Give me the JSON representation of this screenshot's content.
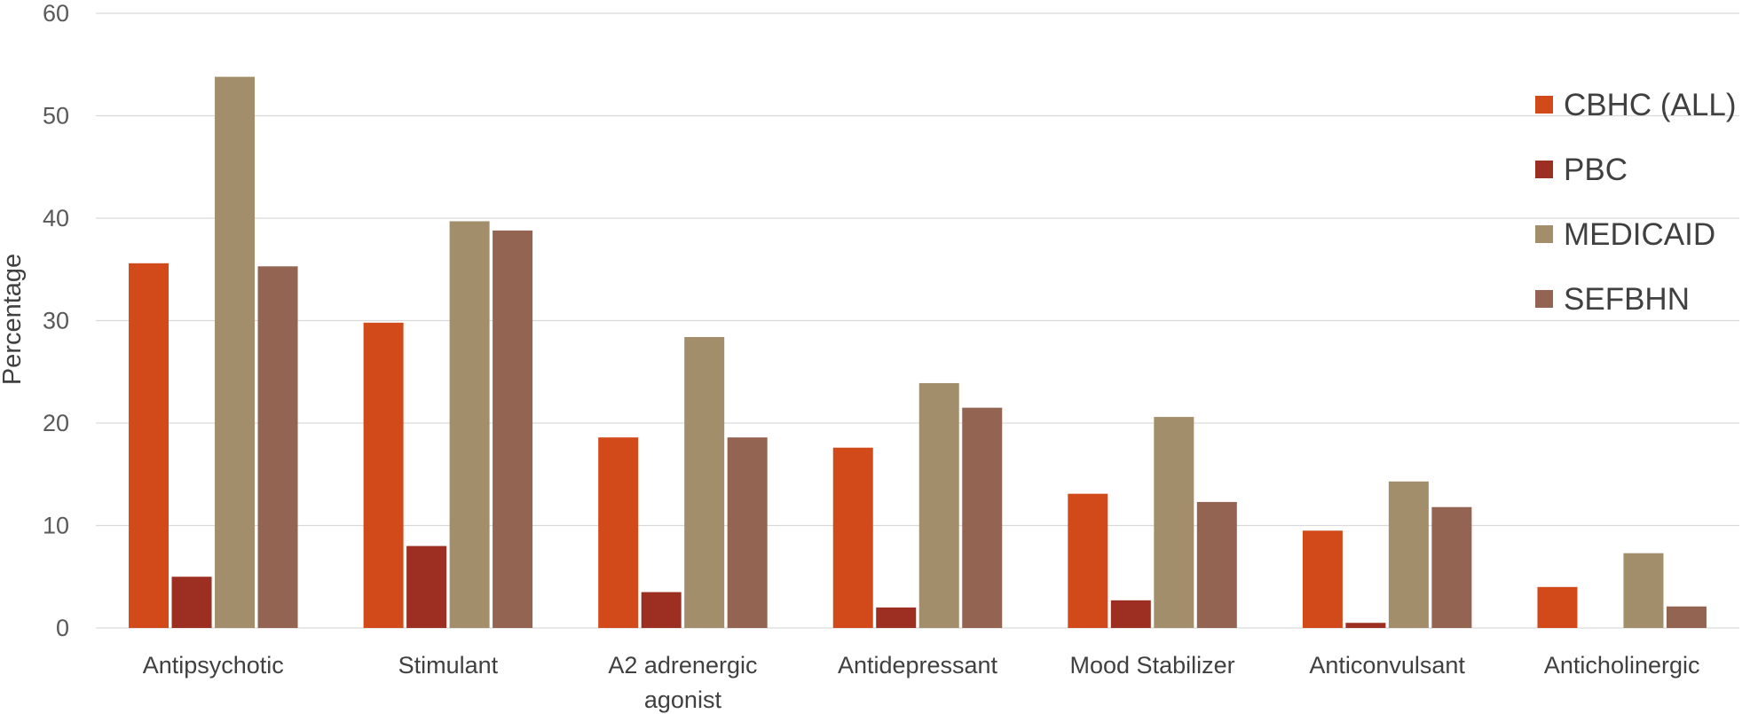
{
  "chart_data": {
    "type": "bar",
    "title": "",
    "xlabel": "",
    "ylabel": "Percentage",
    "ylim": [
      0,
      60
    ],
    "yticks": [
      0,
      10,
      20,
      30,
      40,
      50,
      60
    ],
    "grid": true,
    "legend_position": "right",
    "categories": [
      [
        "Antipsychotic"
      ],
      [
        "Stimulant"
      ],
      [
        "A2 adrenergic",
        "agonist"
      ],
      [
        "Antidepressant"
      ],
      [
        "Mood Stabilizer"
      ],
      [
        "Anticonvulsant"
      ],
      [
        "Anticholinergic"
      ]
    ],
    "series": [
      {
        "name": "CBHC (ALL)",
        "color": "#D24A1A",
        "values": [
          35.6,
          29.8,
          18.6,
          17.6,
          13.1,
          9.5,
          4.0
        ]
      },
      {
        "name": "PBC",
        "color": "#9C2F22",
        "values": [
          5.0,
          8.0,
          3.5,
          2.0,
          2.7,
          0.5,
          0
        ]
      },
      {
        "name": "MEDICAID",
        "color": "#A38E6B",
        "values": [
          53.8,
          39.7,
          28.4,
          23.9,
          20.6,
          14.3,
          7.3
        ]
      },
      {
        "name": "SEFBHN",
        "color": "#946453",
        "values": [
          35.3,
          38.8,
          18.6,
          21.5,
          12.3,
          11.8,
          2.1
        ]
      }
    ]
  }
}
